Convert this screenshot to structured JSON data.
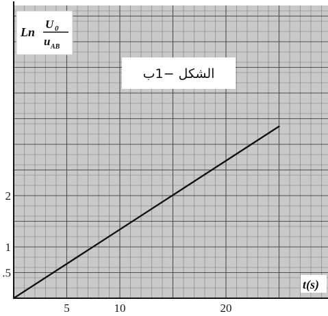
{
  "chart_data": {
    "type": "line",
    "xlabel": "t(s)",
    "ylabel": {
      "prefix": "Ln",
      "numerator": "U",
      "numerator_sub": "0",
      "denominator": "u",
      "denominator_sub": "AB"
    },
    "annotation": "الشكل −1ب",
    "xlim": [
      0,
      27
    ],
    "ylim": [
      0,
      3.6
    ],
    "x_ticks": [
      {
        "value": 5,
        "label": "5"
      },
      {
        "value": 10,
        "label": "10"
      },
      {
        "value": 20,
        "label": "20"
      }
    ],
    "y_ticks": [
      {
        "value": 0.5,
        "label": ".5"
      },
      {
        "value": 1,
        "label": "1"
      },
      {
        "value": 2,
        "label": "2"
      }
    ],
    "grid": true,
    "series": [
      {
        "x": [
          0,
          25
        ],
        "y": [
          0,
          3.35
        ]
      }
    ],
    "colors": {
      "grid": "#7a7a7a",
      "line": "#111111",
      "background": "#c9c9c9"
    }
  }
}
